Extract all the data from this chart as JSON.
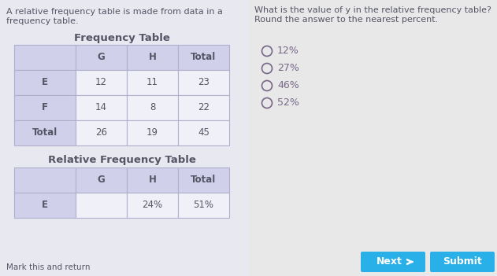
{
  "bg_left": "#e8e8f0",
  "bg_right": "#e8e8e8",
  "left_text_line1": "A relative frequency table is made from data in a",
  "left_text_line2": "frequency table.",
  "right_text_line1": "What is the value of y in the relative frequency table?",
  "right_text_line2": "Round the answer to the nearest percent.",
  "freq_table_title": "Frequency Table",
  "freq_table_headers": [
    "",
    "G",
    "H",
    "Total"
  ],
  "freq_table_rows": [
    [
      "E",
      "12",
      "11",
      "23"
    ],
    [
      "F",
      "14",
      "8",
      "22"
    ],
    [
      "Total",
      "26",
      "19",
      "45"
    ]
  ],
  "rel_table_title": "Relative Frequency Table",
  "rel_table_headers": [
    "",
    "G",
    "H",
    "Total"
  ],
  "rel_table_partial_row": [
    "E",
    "",
    "24%",
    "51%"
  ],
  "choices": [
    "12%",
    "27%",
    "46%",
    "52%"
  ],
  "table_header_bg": "#d0d0ea",
  "table_row_bg": "#f0f0f8",
  "table_border_color": "#b0b0cc",
  "button_next_color": "#29b0e8",
  "button_submit_color": "#29b0e8",
  "footer_text": "Mark this and return",
  "button_next_label": "Next",
  "button_submit_label": "Submit",
  "text_color": "#555566",
  "choice_color": "#776688"
}
